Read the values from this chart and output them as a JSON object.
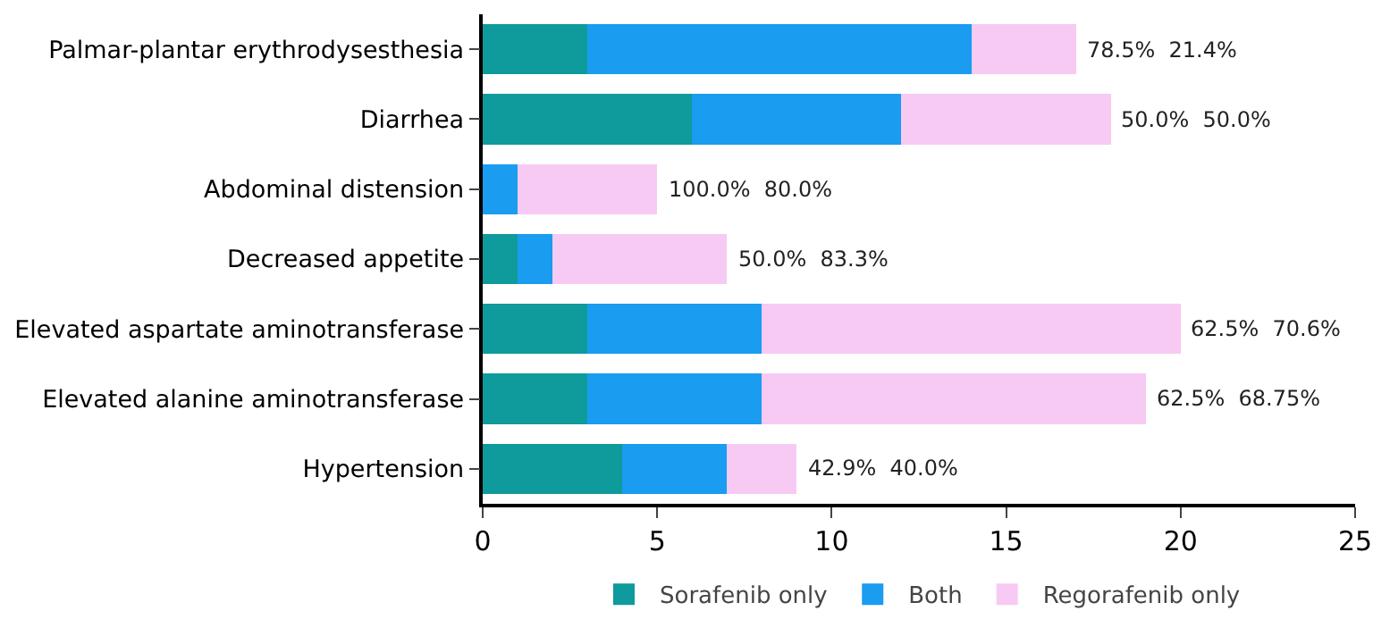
{
  "chart_data": {
    "type": "bar",
    "orientation": "horizontal",
    "stacked": true,
    "categories": [
      "Palmar-plantar erythrodysesthesia",
      "Diarrhea",
      "Abdominal distension",
      "Decreased appetite",
      "Elevated aspartate aminotransferase",
      "Elevated alanine aminotransferase",
      "Hypertension"
    ],
    "series": [
      {
        "name": "Sorafenib only",
        "color": "#0f9a9c",
        "values": [
          3,
          6,
          0,
          1,
          3,
          3,
          4
        ]
      },
      {
        "name": "Both",
        "color": "#1a9cf0",
        "values": [
          11,
          6,
          1,
          1,
          5,
          5,
          3
        ]
      },
      {
        "name": "Regorafenib only",
        "color": "#f7caf3",
        "values": [
          3,
          6,
          4,
          5,
          12,
          11,
          2
        ]
      }
    ],
    "xlim": [
      0,
      25
    ],
    "xticks": [
      0,
      5,
      10,
      15,
      20,
      25
    ],
    "grid": false,
    "legend": "bottom",
    "annotations": [
      {
        "text": "78.5%  21.4%",
        "x": 17,
        "y": "Palmar-plantar erythrodysesthesia"
      },
      {
        "text": "50.0%  50.0%",
        "x": 18,
        "y": "Diarrhea"
      },
      {
        "text": "100.0%  80.0%",
        "x": 5,
        "y": "Abdominal distension"
      },
      {
        "text": "50.0%  83.3%",
        "x": 7,
        "y": "Decreased appetite"
      },
      {
        "text": "62.5%  70.6%",
        "x": 20,
        "y": "Elevated aspartate aminotransferase"
      },
      {
        "text": "62.5%  68.75%",
        "x": 19,
        "y": "Elevated alanine aminotransferase"
      },
      {
        "text": "42.9%  40.0%",
        "x": 9,
        "y": "Hypertension"
      }
    ]
  }
}
